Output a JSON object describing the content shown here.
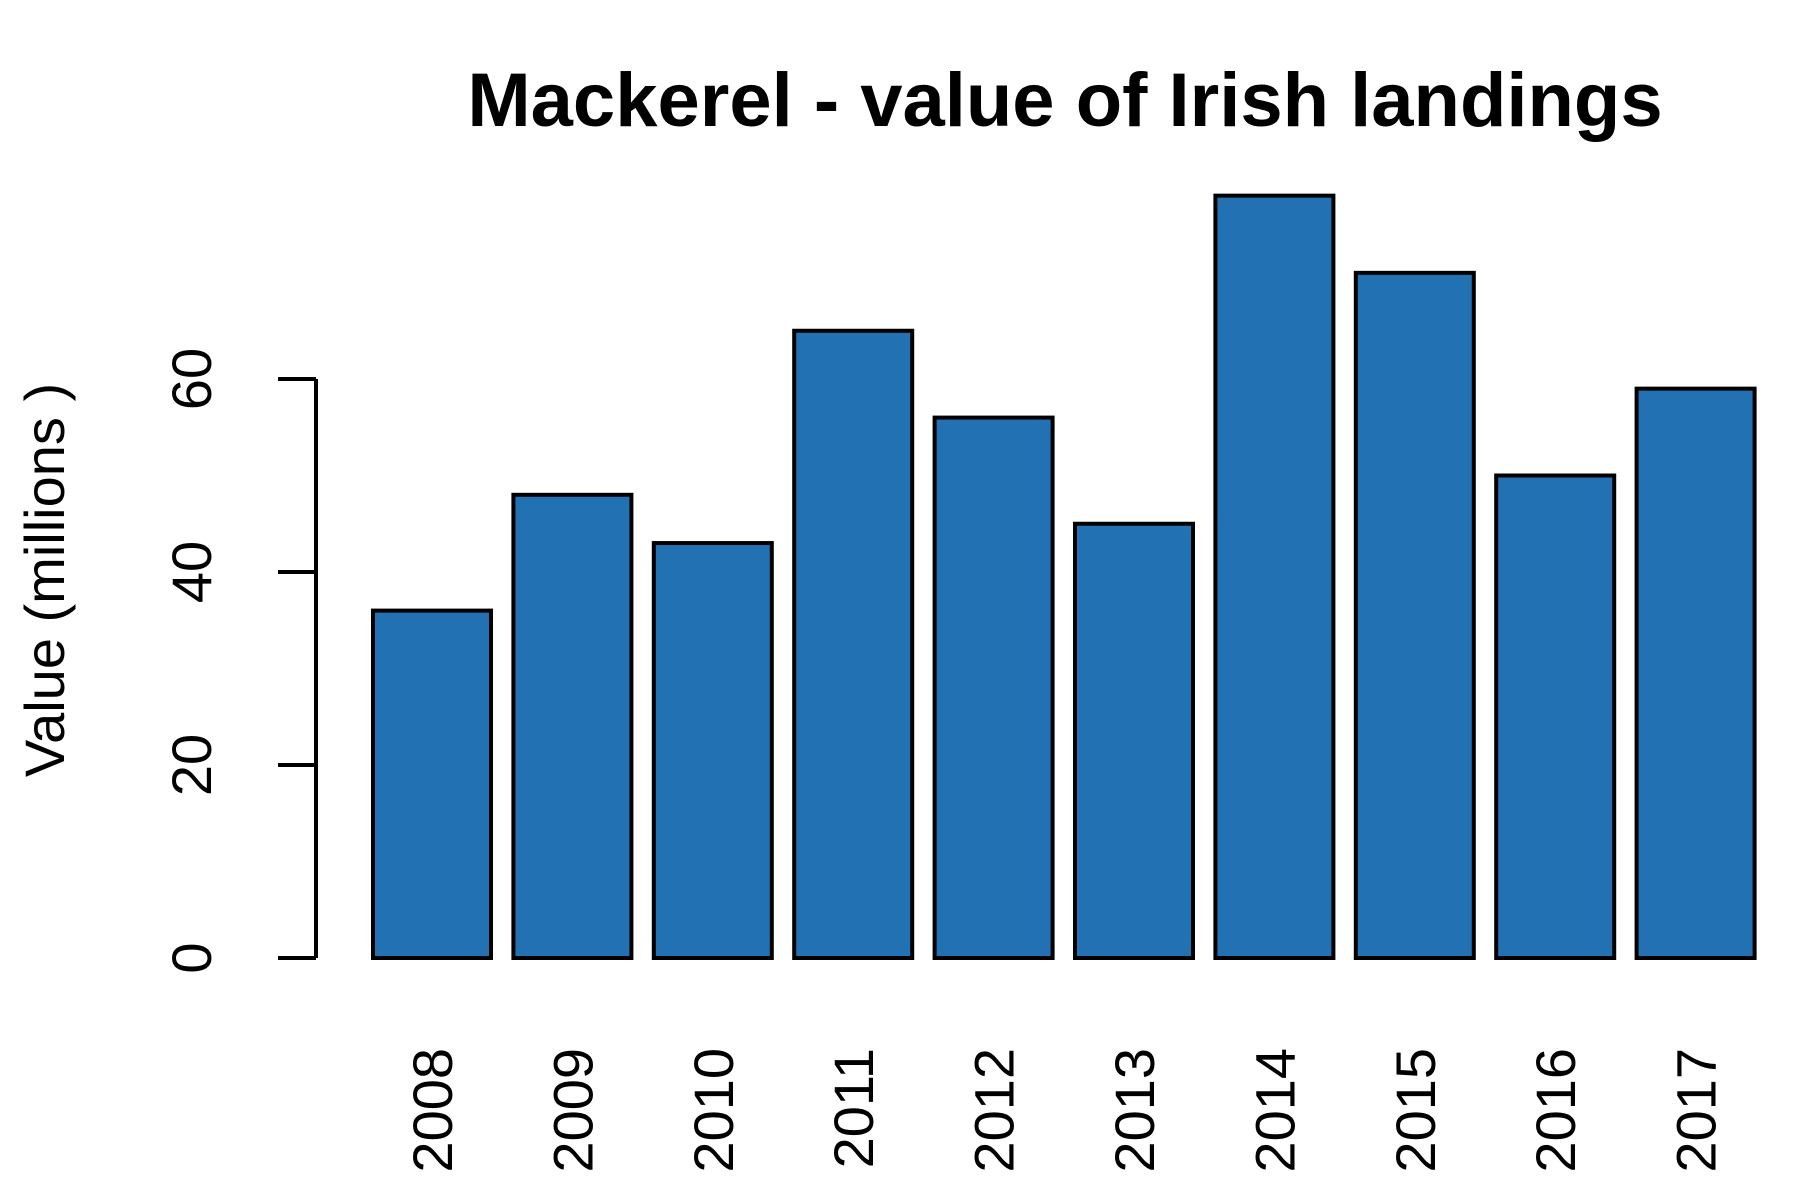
{
  "chart_data": {
    "type": "bar",
    "title": "Mackerel - value of Irish landings",
    "xlabel": "",
    "ylabel": "Value (millions )",
    "categories": [
      "2008",
      "2009",
      "2010",
      "2011",
      "2012",
      "2013",
      "2014",
      "2015",
      "2016",
      "2017"
    ],
    "values": [
      36,
      48,
      43,
      65,
      56,
      45,
      79,
      71,
      50,
      59
    ],
    "ylim": [
      0,
      80
    ],
    "yticks": [
      "0",
      "20",
      "40",
      "60"
    ],
    "bar_color": "#2271b3",
    "grid": false,
    "legend": "none"
  }
}
